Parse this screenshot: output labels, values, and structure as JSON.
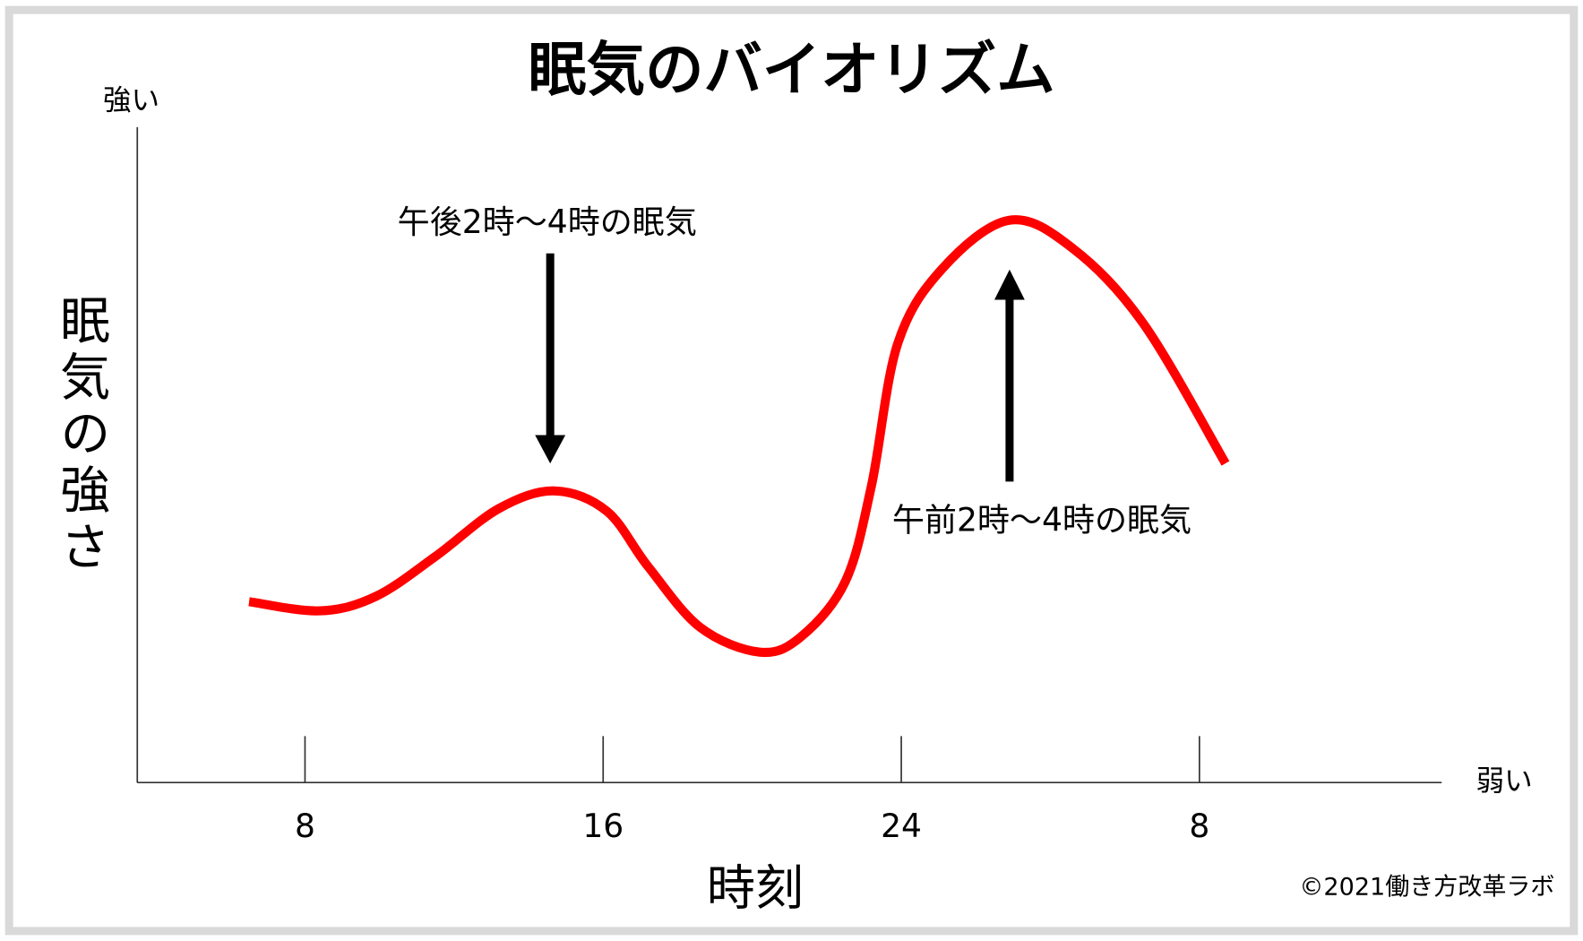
{
  "chart_data": {
    "type": "line",
    "title": "眠気のバイオリズム",
    "y_label": "眠気の強さ",
    "x_label": "時刻",
    "y_top_label": "強い",
    "x_end_label": "弱い",
    "copyright": "©2021働き方改革ラボ",
    "annotations": [
      "午後2時〜4時の眠気",
      "午前2時〜4時の眠気"
    ],
    "x": [
      6.5,
      8.4,
      9.9,
      11.5,
      13.2,
      14.7,
      16.1,
      17.2,
      18.6,
      20.2,
      21.3,
      22.5,
      23.2,
      23.9,
      25.1,
      26.9,
      28.6,
      30.5,
      32.7
    ],
    "series": [
      {
        "color": "#ff0000",
        "values": [
          27.6,
          26.2,
          28.4,
          34.5,
          41.8,
          44.5,
          41.4,
          33,
          23.7,
          19.9,
          22.2,
          30.7,
          45.3,
          66.9,
          78.4,
          85.8,
          81.5,
          70,
          48.7
        ]
      }
    ],
    "xlim": [
      3.5,
      38.5
    ],
    "xticks": [
      8,
      16,
      24,
      {
        "value": 32,
        "label": "8"
      }
    ],
    "ylim": [
      0,
      100
    ]
  }
}
